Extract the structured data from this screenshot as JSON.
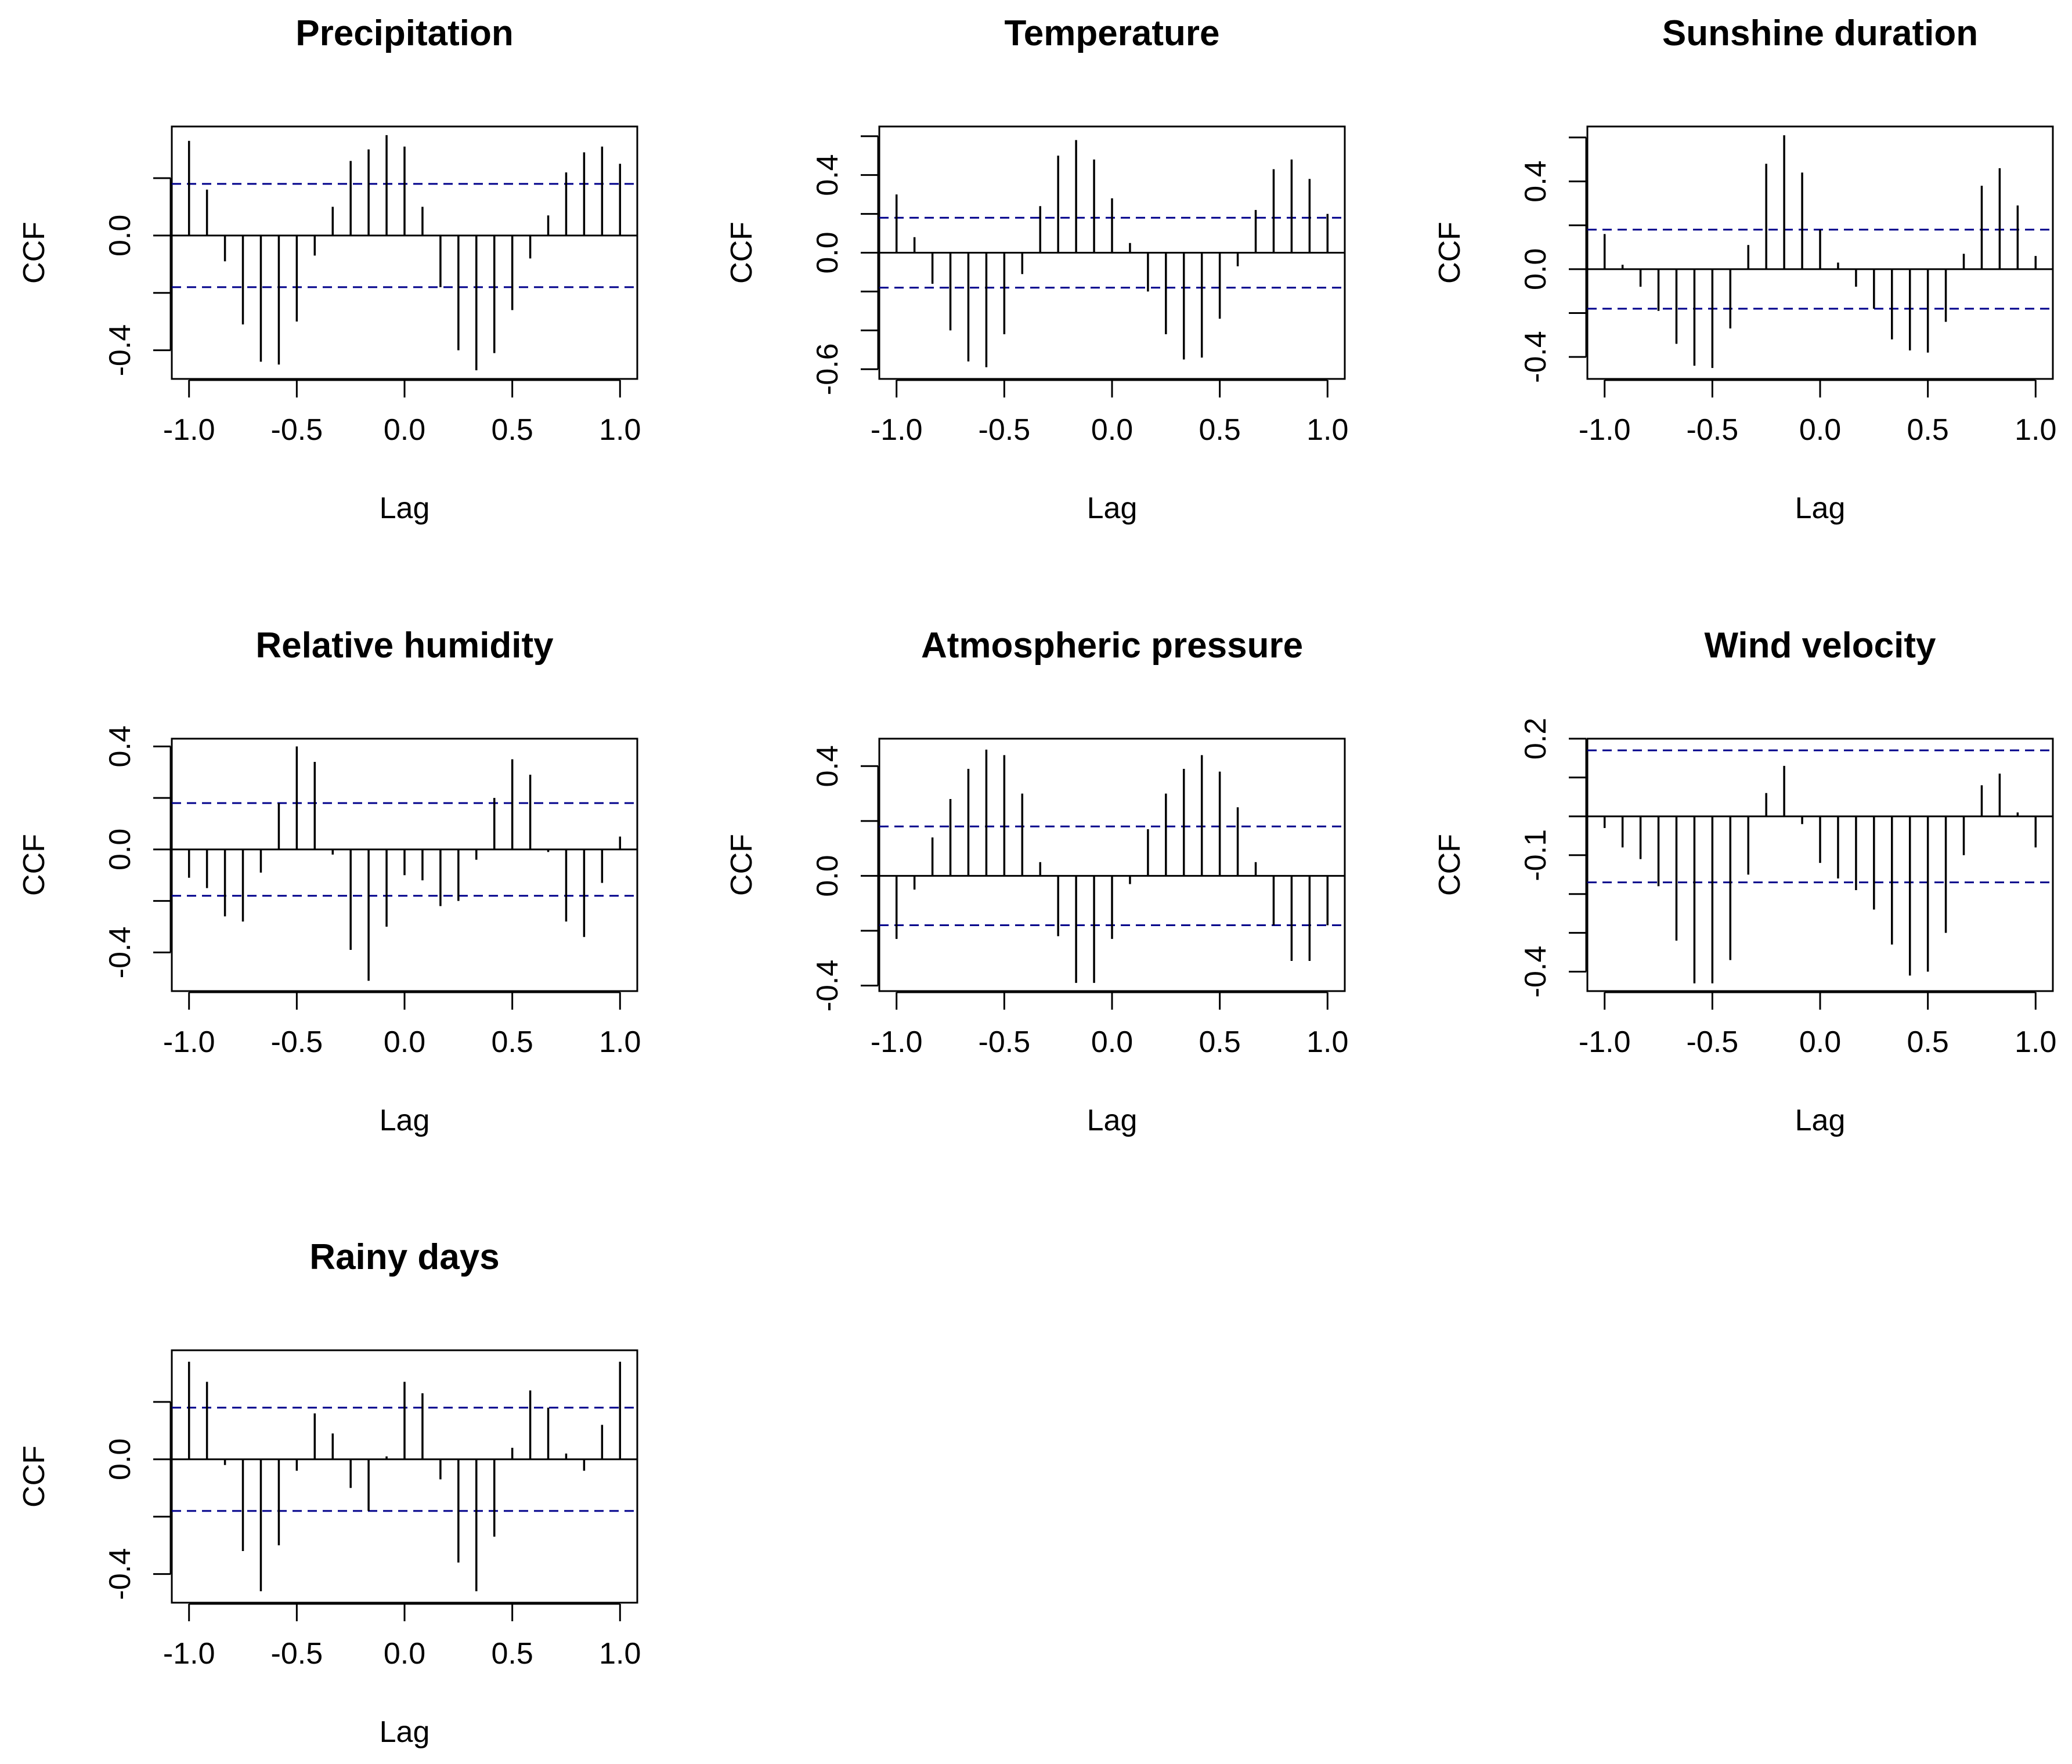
{
  "colors": {
    "ci_line": "#00008B",
    "bar": "#000000",
    "frame": "#000000"
  },
  "chart_data": [
    {
      "type": "bar",
      "title": "Precipitation",
      "xlabel": "Lag",
      "ylabel": "CCF",
      "xlim": [
        -1.08,
        1.08
      ],
      "ylim": [
        -0.5,
        0.38
      ],
      "xticks": [
        -1.0,
        -0.5,
        0.0,
        0.5,
        1.0
      ],
      "xtick_labels": [
        "-1.0",
        "-0.5",
        "0.0",
        "0.5",
        "1.0"
      ],
      "yticks": [
        -0.4,
        0.0
      ],
      "ytick_labels": [
        "-0.4",
        "0.0"
      ],
      "ytick_marks": [
        -0.4,
        -0.2,
        0.0,
        0.2
      ],
      "ci": 0.18,
      "lags": [
        -1.0,
        -0.9167,
        -0.8333,
        -0.75,
        -0.6667,
        -0.5833,
        -0.5,
        -0.4167,
        -0.3333,
        -0.25,
        -0.1667,
        -0.0833,
        0.0,
        0.0833,
        0.1667,
        0.25,
        0.3333,
        0.4167,
        0.5,
        0.5833,
        0.6667,
        0.75,
        0.8333,
        0.9167,
        1.0
      ],
      "values": [
        0.33,
        0.16,
        -0.09,
        -0.31,
        -0.44,
        -0.45,
        -0.3,
        -0.07,
        0.1,
        0.26,
        0.3,
        0.35,
        0.31,
        0.1,
        -0.18,
        -0.4,
        -0.47,
        -0.41,
        -0.26,
        -0.08,
        0.07,
        0.22,
        0.29,
        0.31,
        0.25
      ]
    },
    {
      "type": "bar",
      "title": "Temperature",
      "xlabel": "Lag",
      "ylabel": "CCF",
      "xlim": [
        -1.08,
        1.08
      ],
      "ylim": [
        -0.65,
        0.65
      ],
      "xticks": [
        -1.0,
        -0.5,
        0.0,
        0.5,
        1.0
      ],
      "xtick_labels": [
        "-1.0",
        "-0.5",
        "0.0",
        "0.5",
        "1.0"
      ],
      "yticks": [
        -0.6,
        0.0,
        0.4
      ],
      "ytick_labels": [
        "-0.6",
        "0.0",
        "0.4"
      ],
      "ytick_marks": [
        -0.6,
        -0.4,
        -0.2,
        0.0,
        0.2,
        0.4,
        0.6
      ],
      "ci": 0.18,
      "lags": [
        -1.0,
        -0.9167,
        -0.8333,
        -0.75,
        -0.6667,
        -0.5833,
        -0.5,
        -0.4167,
        -0.3333,
        -0.25,
        -0.1667,
        -0.0833,
        0.0,
        0.0833,
        0.1667,
        0.25,
        0.3333,
        0.4167,
        0.5,
        0.5833,
        0.6667,
        0.75,
        0.8333,
        0.9167,
        1.0
      ],
      "values": [
        0.3,
        0.08,
        -0.16,
        -0.4,
        -0.56,
        -0.59,
        -0.42,
        -0.11,
        0.24,
        0.5,
        0.58,
        0.48,
        0.28,
        0.05,
        -0.2,
        -0.42,
        -0.55,
        -0.54,
        -0.34,
        -0.07,
        0.22,
        0.43,
        0.48,
        0.38,
        0.2
      ]
    },
    {
      "type": "bar",
      "title": "Sunshine duration",
      "xlabel": "Lag",
      "ylabel": "CCF",
      "xlim": [
        -1.08,
        1.08
      ],
      "ylim": [
        -0.5,
        0.65
      ],
      "xticks": [
        -1.0,
        -0.5,
        0.0,
        0.5,
        1.0
      ],
      "xtick_labels": [
        "-1.0",
        "-0.5",
        "0.0",
        "0.5",
        "1.0"
      ],
      "yticks": [
        -0.4,
        0.0,
        0.4
      ],
      "ytick_labels": [
        "-0.4",
        "0.0",
        "0.4"
      ],
      "ytick_marks": [
        -0.4,
        -0.2,
        0.0,
        0.2,
        0.4,
        0.6
      ],
      "ci": 0.18,
      "lags": [
        -1.0,
        -0.9167,
        -0.8333,
        -0.75,
        -0.6667,
        -0.5833,
        -0.5,
        -0.4167,
        -0.3333,
        -0.25,
        -0.1667,
        -0.0833,
        0.0,
        0.0833,
        0.1667,
        0.25,
        0.3333,
        0.4167,
        0.5,
        0.5833,
        0.6667,
        0.75,
        0.8333,
        0.9167,
        1.0
      ],
      "values": [
        0.16,
        0.02,
        -0.08,
        -0.19,
        -0.34,
        -0.44,
        -0.45,
        -0.27,
        0.11,
        0.48,
        0.61,
        0.44,
        0.18,
        0.03,
        -0.08,
        -0.18,
        -0.32,
        -0.37,
        -0.38,
        -0.24,
        0.07,
        0.38,
        0.46,
        0.29,
        0.06
      ]
    },
    {
      "type": "bar",
      "title": "Relative humidity",
      "xlabel": "Lag",
      "ylabel": "CCF",
      "xlim": [
        -1.08,
        1.08
      ],
      "ylim": [
        -0.55,
        0.43
      ],
      "xticks": [
        -1.0,
        -0.5,
        0.0,
        0.5,
        1.0
      ],
      "xtick_labels": [
        "-1.0",
        "-0.5",
        "0.0",
        "0.5",
        "1.0"
      ],
      "yticks": [
        -0.4,
        0.0,
        0.4
      ],
      "ytick_labels": [
        "-0.4",
        "0.0",
        "0.4"
      ],
      "ytick_marks": [
        -0.4,
        -0.2,
        0.0,
        0.2,
        0.4
      ],
      "ci": 0.18,
      "lags": [
        -1.0,
        -0.9167,
        -0.8333,
        -0.75,
        -0.6667,
        -0.5833,
        -0.5,
        -0.4167,
        -0.3333,
        -0.25,
        -0.1667,
        -0.0833,
        0.0,
        0.0833,
        0.1667,
        0.25,
        0.3333,
        0.4167,
        0.5,
        0.5833,
        0.6667,
        0.75,
        0.8333,
        0.9167,
        1.0
      ],
      "values": [
        -0.11,
        -0.15,
        -0.26,
        -0.28,
        -0.09,
        0.18,
        0.4,
        0.34,
        -0.02,
        -0.39,
        -0.51,
        -0.3,
        -0.1,
        -0.12,
        -0.22,
        -0.2,
        -0.04,
        0.2,
        0.35,
        0.29,
        -0.01,
        -0.28,
        -0.34,
        -0.13,
        0.05
      ]
    },
    {
      "type": "bar",
      "title": "Atmospheric pressure",
      "xlabel": "Lag",
      "ylabel": "CCF",
      "xlim": [
        -1.08,
        1.08
      ],
      "ylim": [
        -0.42,
        0.5
      ],
      "xticks": [
        -1.0,
        -0.5,
        0.0,
        0.5,
        1.0
      ],
      "xtick_labels": [
        "-1.0",
        "-0.5",
        "0.0",
        "0.5",
        "1.0"
      ],
      "yticks": [
        -0.4,
        0.0,
        0.4
      ],
      "ytick_labels": [
        "-0.4",
        "0.0",
        "0.4"
      ],
      "ytick_marks": [
        -0.4,
        -0.2,
        0.0,
        0.2,
        0.4
      ],
      "ci": 0.18,
      "lags": [
        -1.0,
        -0.9167,
        -0.8333,
        -0.75,
        -0.6667,
        -0.5833,
        -0.5,
        -0.4167,
        -0.3333,
        -0.25,
        -0.1667,
        -0.0833,
        0.0,
        0.0833,
        0.1667,
        0.25,
        0.3333,
        0.4167,
        0.5,
        0.5833,
        0.6667,
        0.75,
        0.8333,
        0.9167,
        1.0
      ],
      "values": [
        -0.23,
        -0.05,
        0.14,
        0.28,
        0.39,
        0.46,
        0.44,
        0.3,
        0.05,
        -0.22,
        -0.39,
        -0.39,
        -0.23,
        -0.03,
        0.17,
        0.3,
        0.39,
        0.44,
        0.38,
        0.25,
        0.05,
        -0.18,
        -0.31,
        -0.31,
        -0.18
      ]
    },
    {
      "type": "bar",
      "title": "Wind velocity",
      "xlabel": "Lag",
      "ylabel": "CCF",
      "xlim": [
        -1.08,
        1.08
      ],
      "ylim": [
        -0.45,
        0.2
      ],
      "xticks": [
        -1.0,
        -0.5,
        0.0,
        0.5,
        1.0
      ],
      "xtick_labels": [
        "-1.0",
        "-0.5",
        "0.0",
        "0.5",
        "1.0"
      ],
      "yticks": [
        -0.4,
        -0.1,
        0.2
      ],
      "ytick_labels": [
        "-0.4",
        "-0.1",
        "0.2"
      ],
      "ytick_marks": [
        -0.4,
        -0.3,
        -0.2,
        -0.1,
        0.0,
        0.1,
        0.2
      ],
      "ci": 0.17,
      "lags": [
        -1.0,
        -0.9167,
        -0.8333,
        -0.75,
        -0.6667,
        -0.5833,
        -0.5,
        -0.4167,
        -0.3333,
        -0.25,
        -0.1667,
        -0.0833,
        0.0,
        0.0833,
        0.1667,
        0.25,
        0.3333,
        0.4167,
        0.5,
        0.5833,
        0.6667,
        0.75,
        0.8333,
        0.9167,
        1.0
      ],
      "values": [
        -0.03,
        -0.08,
        -0.11,
        -0.18,
        -0.32,
        -0.43,
        -0.43,
        -0.37,
        -0.15,
        0.06,
        0.13,
        -0.02,
        -0.12,
        -0.16,
        -0.19,
        -0.24,
        -0.33,
        -0.41,
        -0.4,
        -0.3,
        -0.1,
        0.08,
        0.11,
        0.01,
        -0.08
      ]
    },
    {
      "type": "bar",
      "title": "Rainy days",
      "xlabel": "Lag",
      "ylabel": "CCF",
      "xlim": [
        -1.08,
        1.08
      ],
      "ylim": [
        -0.5,
        0.38
      ],
      "xticks": [
        -1.0,
        -0.5,
        0.0,
        0.5,
        1.0
      ],
      "xtick_labels": [
        "-1.0",
        "-0.5",
        "0.0",
        "0.5",
        "1.0"
      ],
      "yticks": [
        -0.4,
        0.0
      ],
      "ytick_labels": [
        "-0.4",
        "0.0"
      ],
      "ytick_marks": [
        -0.4,
        -0.2,
        0.0,
        0.2
      ],
      "ci": 0.18,
      "lags": [
        -1.0,
        -0.9167,
        -0.8333,
        -0.75,
        -0.6667,
        -0.5833,
        -0.5,
        -0.4167,
        -0.3333,
        -0.25,
        -0.1667,
        -0.0833,
        0.0,
        0.0833,
        0.1667,
        0.25,
        0.3333,
        0.4167,
        0.5,
        0.5833,
        0.6667,
        0.75,
        0.8333,
        0.9167,
        1.0
      ],
      "values": [
        0.34,
        0.27,
        -0.02,
        -0.32,
        -0.46,
        -0.3,
        -0.04,
        0.16,
        0.09,
        -0.1,
        -0.18,
        0.01,
        0.27,
        0.23,
        -0.07,
        -0.36,
        -0.46,
        -0.27,
        0.04,
        0.24,
        0.18,
        0.02,
        -0.04,
        0.12,
        0.34
      ]
    }
  ]
}
